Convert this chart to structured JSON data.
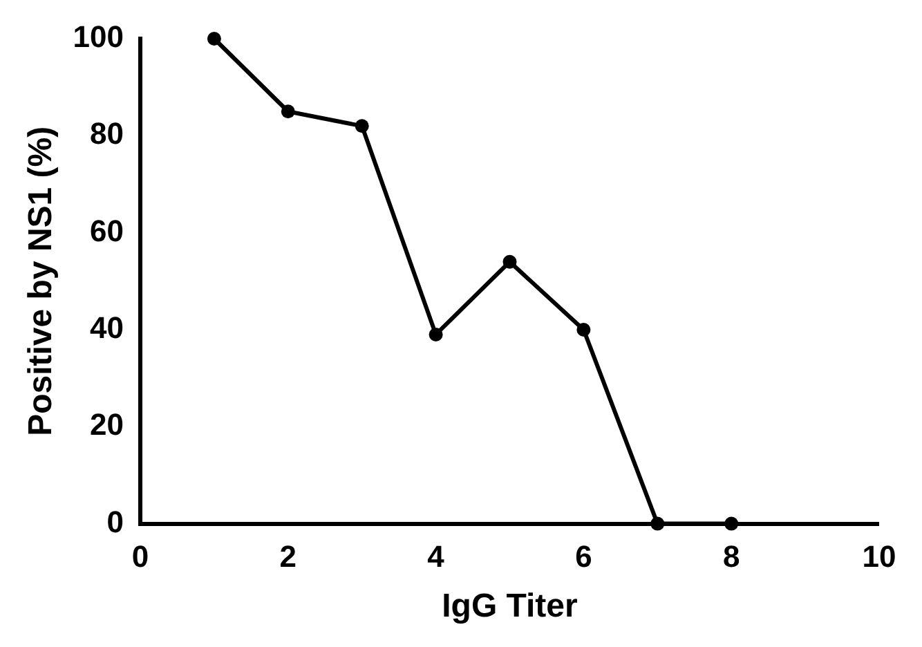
{
  "chart_data": {
    "type": "line",
    "xlabel": "IgG Titer",
    "ylabel": "Positive by NS1 (%)",
    "x": [
      1,
      2,
      3,
      4,
      5,
      6,
      7,
      8
    ],
    "series": [
      {
        "color": "#000000",
        "values": [
          100,
          85,
          82,
          39,
          54,
          40,
          0,
          0
        ]
      }
    ],
    "xlim": [
      0,
      10
    ],
    "xticks": [
      0,
      2,
      4,
      6,
      8,
      10
    ],
    "ylim": [
      0,
      100
    ],
    "yticks": [
      0,
      20,
      40,
      60,
      80,
      100
    ],
    "grid": false,
    "legend": false,
    "marker": "circle",
    "line_style": "solid"
  }
}
